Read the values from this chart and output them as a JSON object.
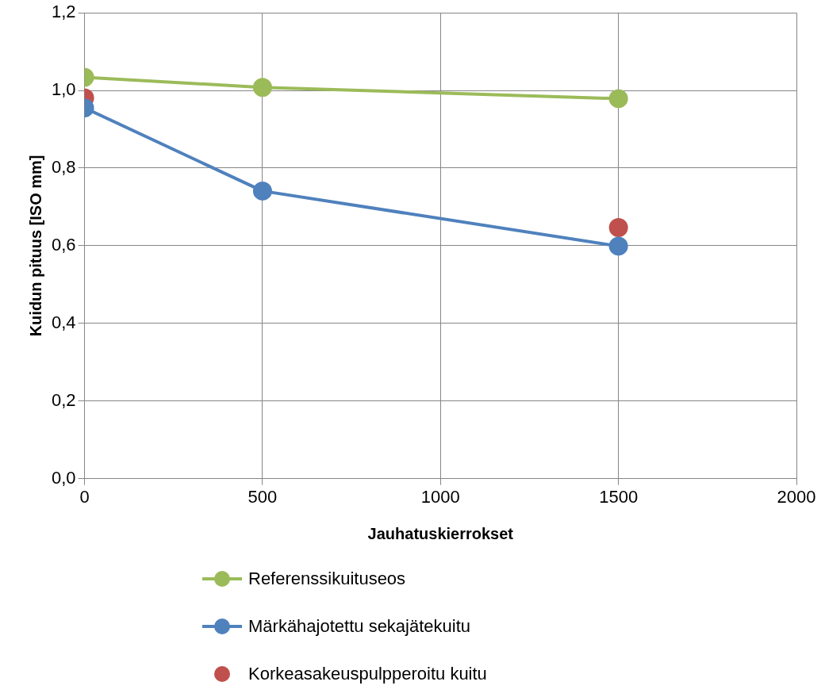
{
  "chart_data": {
    "type": "line",
    "xlabel": "Jauhatuskierrokset",
    "ylabel": "Kuidun pituus [ISO mm]",
    "xlim": [
      0,
      2000
    ],
    "xticks": [
      0,
      500,
      1000,
      1500,
      2000
    ],
    "ylim": [
      0,
      1.2
    ],
    "yticks": [
      {
        "value": 0,
        "label": "0,0"
      },
      {
        "value": 0.2,
        "label": "0,2"
      },
      {
        "value": 0.4,
        "label": "0,4"
      },
      {
        "value": 0.6,
        "label": "0,6"
      },
      {
        "value": 0.8,
        "label": "0,8"
      },
      {
        "value": 1.0,
        "label": "1,0"
      },
      {
        "value": 1.2,
        "label": "1,2"
      }
    ],
    "grid": true,
    "legend": "bottom",
    "marker": "circle",
    "series": [
      {
        "name": "Referenssikuituseos",
        "color": "#9bbb59",
        "x": [
          0,
          500,
          1500
        ],
        "values": [
          1.034,
          1.008,
          0.979
        ]
      },
      {
        "name": "Märkähajotettu sekajätekuitu",
        "color": "#4f81bd",
        "x": [
          0,
          500,
          1500
        ],
        "values": [
          0.955,
          0.741,
          0.599
        ]
      },
      {
        "name": "Korkeasakeuspulpperoitu kuitu",
        "type": "scatter",
        "color": "#c0504d",
        "x": [
          0,
          1500
        ],
        "values": [
          0.981,
          0.647
        ]
      }
    ]
  }
}
